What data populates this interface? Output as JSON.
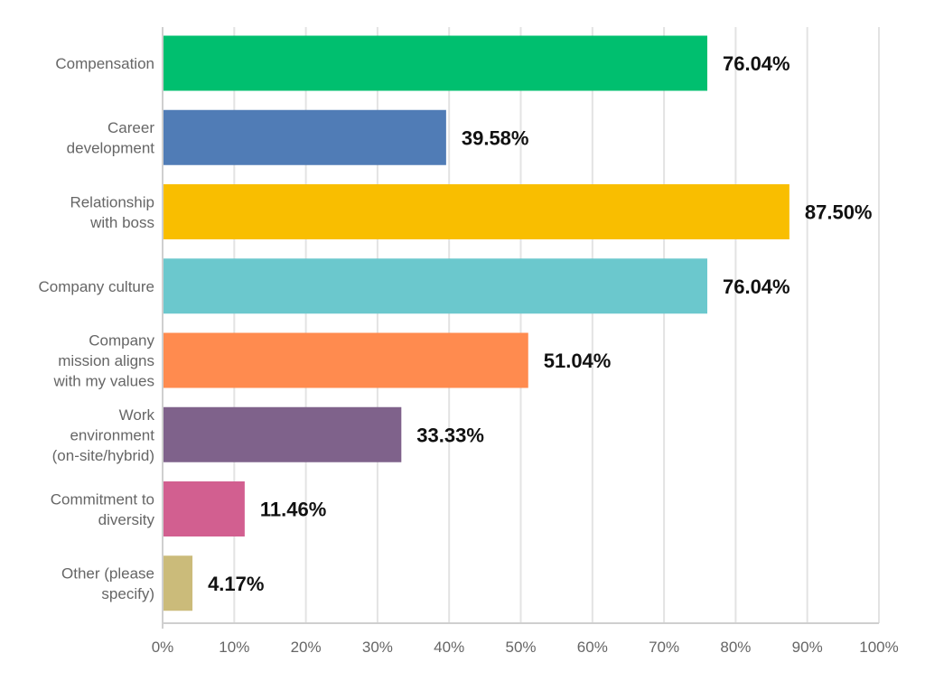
{
  "chart_data": {
    "type": "bar",
    "orientation": "horizontal",
    "title": "",
    "xlabel": "",
    "ylabel": "",
    "xlim": [
      0,
      100
    ],
    "grid": true,
    "legend": "none",
    "categories": [
      "Compensation",
      "Career development",
      "Relationship with boss",
      "Company culture",
      "Company mission aligns with my values",
      "Work environment (on-site/hybrid)",
      "Commitment to diversity",
      "Other (please specify)"
    ],
    "category_lines": [
      [
        "Compensation"
      ],
      [
        "Career",
        "development"
      ],
      [
        "Relationship",
        "with boss"
      ],
      [
        "Company culture"
      ],
      [
        "Company",
        "mission aligns",
        "with my values"
      ],
      [
        "Work",
        "environment",
        "(on-site/hybrid)"
      ],
      [
        "Commitment to",
        "diversity"
      ],
      [
        "Other (please",
        "specify)"
      ]
    ],
    "values": [
      76.04,
      39.58,
      87.5,
      76.04,
      51.04,
      33.33,
      11.46,
      4.17
    ],
    "data_labels": [
      "76.04%",
      "39.58%",
      "87.50%",
      "76.04%",
      "51.04%",
      "33.33%",
      "11.46%",
      "4.17%"
    ],
    "colors": [
      "#00bf6f",
      "#507cb6",
      "#f9be00",
      "#6bc8cd",
      "#ff8b4f",
      "#7f628b",
      "#d25f90",
      "#cbbb7a"
    ],
    "x_ticks": [
      0,
      10,
      20,
      30,
      40,
      50,
      60,
      70,
      80,
      90,
      100
    ],
    "x_tick_labels": [
      "0%",
      "10%",
      "20%",
      "30%",
      "40%",
      "50%",
      "60%",
      "70%",
      "80%",
      "90%",
      "100%"
    ]
  }
}
